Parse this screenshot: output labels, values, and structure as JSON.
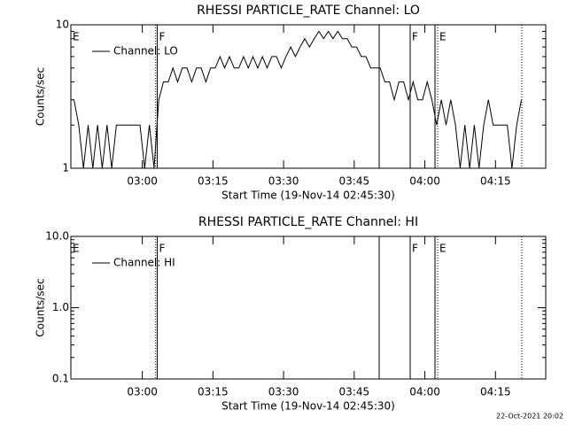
{
  "chart_data": [
    {
      "type": "line",
      "title": "RHESSI PARTICLE_RATE Channel: LO",
      "xlabel": "Start Time (19-Nov-14 02:45:30)",
      "ylabel": "Counts/sec",
      "xlim": [
        -40,
        6010
      ],
      "ylim": [
        1,
        10
      ],
      "log_y": true,
      "xticks": [
        {
          "value": 870,
          "label": "03:00"
        },
        {
          "value": 1770,
          "label": "03:15"
        },
        {
          "value": 2670,
          "label": "03:30"
        },
        {
          "value": 3570,
          "label": "03:45"
        },
        {
          "value": 4470,
          "label": "04:00"
        },
        {
          "value": 5370,
          "label": "04:15"
        }
      ],
      "yticks": [
        1,
        10
      ],
      "x": [
        0,
        60,
        120,
        180,
        240,
        300,
        360,
        420,
        480,
        540,
        600,
        660,
        720,
        780,
        840,
        900,
        960,
        1020,
        1080,
        1140,
        1200,
        1260,
        1320,
        1380,
        1440,
        1500,
        1560,
        1620,
        1680,
        1740,
        1800,
        1860,
        1920,
        1980,
        2040,
        2100,
        2160,
        2220,
        2280,
        2340,
        2400,
        2460,
        2520,
        2580,
        2640,
        2700,
        2760,
        2820,
        2880,
        2940,
        3000,
        3060,
        3120,
        3180,
        3240,
        3300,
        3360,
        3420,
        3480,
        3540,
        3600,
        3660,
        3720,
        3780,
        3840,
        3900,
        3960,
        4020,
        4080,
        4140,
        4200,
        4260,
        4320,
        4380,
        4440,
        4500,
        4560,
        4620,
        4680,
        4740,
        4800,
        4860,
        4920,
        4980,
        5040,
        5100,
        5160,
        5220,
        5280,
        5340,
        5400,
        5460,
        5520,
        5580,
        5640,
        5700
      ],
      "series": [
        {
          "name": "Channel: LO",
          "color": "#000000",
          "values": [
            3,
            2,
            1,
            2,
            1,
            2,
            1,
            2,
            1,
            2,
            2,
            2,
            2,
            2,
            2,
            1,
            2,
            1,
            3,
            4,
            4,
            5,
            4,
            5,
            5,
            4,
            5,
            5,
            4,
            5,
            5,
            6,
            5,
            6,
            5,
            5,
            6,
            5,
            6,
            5,
            6,
            5,
            6,
            6,
            5,
            6,
            7,
            6,
            7,
            8,
            7,
            8,
            9,
            8,
            9,
            8,
            9,
            8,
            8,
            7,
            7,
            6,
            6,
            5,
            5,
            5,
            4,
            4,
            3,
            4,
            4,
            3,
            4,
            3,
            3,
            4,
            3,
            2,
            3,
            2,
            3,
            2,
            1,
            2,
            1,
            2,
            1,
            2,
            3,
            2,
            2,
            2,
            2,
            1,
            2,
            3
          ]
        }
      ],
      "markers": [
        {
          "x": 1040,
          "style": "dotted"
        },
        {
          "x": 1060,
          "style": "solid"
        },
        {
          "x": 3888,
          "style": "solid"
        },
        {
          "x": 4283,
          "style": "solid"
        },
        {
          "x": 4599,
          "style": "solid"
        },
        {
          "x": 4633,
          "style": "dotted"
        },
        {
          "x": 5705,
          "style": "dotted"
        }
      ],
      "flags": [
        {
          "x": -40,
          "label": "E"
        },
        {
          "x": 1060,
          "label": "F"
        },
        {
          "x": 4283,
          "label": "F"
        },
        {
          "x": 4633,
          "label": "E"
        }
      ]
    },
    {
      "type": "line",
      "title": "RHESSI PARTICLE_RATE Channel: HI",
      "xlabel": "Start Time (19-Nov-14 02:45:30)",
      "ylabel": "Counts/sec",
      "xlim": [
        -40,
        6010
      ],
      "ylim": [
        0.1,
        10
      ],
      "log_y": true,
      "xticks": [
        {
          "value": 870,
          "label": "03:00"
        },
        {
          "value": 1770,
          "label": "03:15"
        },
        {
          "value": 2670,
          "label": "03:30"
        },
        {
          "value": 3570,
          "label": "03:45"
        },
        {
          "value": 4470,
          "label": "04:00"
        },
        {
          "value": 5370,
          "label": "04:15"
        }
      ],
      "yticks": [
        0.1,
        {
          "value": 1,
          "label": "1.0"
        },
        {
          "value": 10,
          "label": "10.0"
        }
      ],
      "x": [],
      "series": [
        {
          "name": "Channel: HI",
          "color": "#000000",
          "values": []
        }
      ],
      "markers": [
        {
          "x": 1040,
          "style": "dotted"
        },
        {
          "x": 1060,
          "style": "solid"
        },
        {
          "x": 3888,
          "style": "solid"
        },
        {
          "x": 4283,
          "style": "solid"
        },
        {
          "x": 4599,
          "style": "solid"
        },
        {
          "x": 4633,
          "style": "dotted"
        },
        {
          "x": 5705,
          "style": "dotted"
        }
      ],
      "flags": [
        {
          "x": -40,
          "label": "E"
        },
        {
          "x": 1060,
          "label": "F"
        },
        {
          "x": 4283,
          "label": "F"
        },
        {
          "x": 4633,
          "label": "E"
        }
      ]
    }
  ],
  "timestamp": "22-Oct-2021 20:02"
}
